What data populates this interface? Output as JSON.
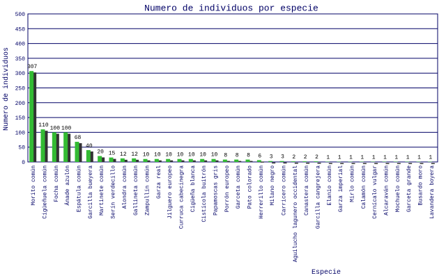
{
  "chart_data": {
    "type": "bar",
    "title": "Numero de individuos por especie",
    "x_label": "Especie",
    "y_label": "Numero de individuos",
    "categories": [
      "Morito común",
      "Cigüeñuela común",
      "Focha común",
      "Ánade azulón",
      "Espátula común",
      "Garcilla bueyera",
      "Martinete común",
      "Serín verdecillo",
      "Alondra común",
      "Gallineta común",
      "Zampullín común",
      "Garza real",
      "Jilguero europeo",
      "Curruca cabecinegra",
      "Cigüeña blanca",
      "Cistícola buitrón",
      "Papamoscas gris",
      "Porrón europeo",
      "Garceta común",
      "Pato colorado",
      "Herrerillo común",
      "Milano negro",
      "Carricero común",
      "Aguilucho lagunero occidental",
      "Canastera común",
      "Garcilla cangrejera",
      "Elanio común",
      "Garza imperial",
      "Mirlo común",
      "Calamón común",
      "Cernícalo vulgar",
      "Alcaraván común",
      "Mochuelo común",
      "Garceta grande",
      "Busardo moro",
      "Lavandera boyera"
    ],
    "values": [
      307,
      110,
      100,
      100,
      68,
      40,
      20,
      15,
      12,
      12,
      10,
      10,
      10,
      10,
      10,
      10,
      10,
      8,
      8,
      8,
      6,
      3,
      3,
      2,
      2,
      2,
      1,
      1,
      1,
      1,
      1,
      1,
      1,
      1,
      1,
      1
    ],
    "color": "#33bb33",
    "shadow_color": "#333333",
    "ylim": [
      0,
      500
    ],
    "yticks": [
      0,
      50,
      100,
      150,
      200,
      250,
      300,
      350,
      400,
      450,
      500
    ],
    "grid": true
  }
}
